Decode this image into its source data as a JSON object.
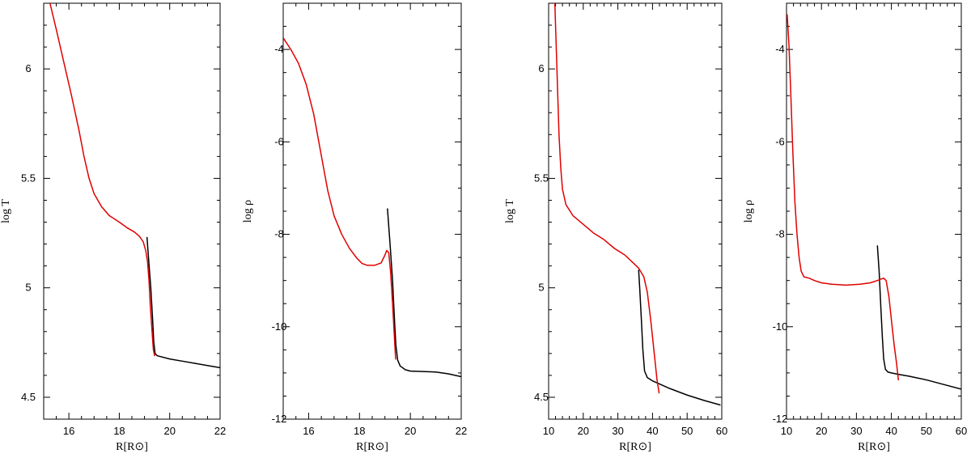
{
  "colors": {
    "model_a": "#000000",
    "model_b": "#e00000",
    "axes": "#000000"
  },
  "chart_data": [
    {
      "type": "line",
      "xlabel": "R[R⊙]",
      "ylabel": "log T",
      "xlim": [
        15,
        22
      ],
      "ylim": [
        4.4,
        6.3
      ],
      "xticks": [
        16,
        18,
        20,
        22
      ],
      "yticks": [
        4.5,
        5,
        5.5,
        6
      ],
      "ytick_labels": [
        "4.5",
        "5",
        "5.5",
        "6"
      ],
      "x_minor": 0.5,
      "y_minor": 0.1,
      "series": [
        {
          "color": "#000000",
          "points": [
            [
              19.1,
              5.23
            ],
            [
              19.17,
              5.12
            ],
            [
              19.25,
              5.0
            ],
            [
              19.32,
              4.86
            ],
            [
              19.37,
              4.75
            ],
            [
              19.42,
              4.7
            ],
            [
              19.5,
              4.69
            ],
            [
              20.0,
              4.675
            ],
            [
              20.5,
              4.665
            ],
            [
              21.0,
              4.655
            ],
            [
              21.5,
              4.645
            ],
            [
              22.0,
              4.635
            ]
          ]
        },
        {
          "color": "#e00000",
          "points": [
            [
              15.25,
              6.3
            ],
            [
              15.5,
              6.18
            ],
            [
              15.8,
              6.03
            ],
            [
              16.1,
              5.88
            ],
            [
              16.4,
              5.72
            ],
            [
              16.6,
              5.6
            ],
            [
              16.8,
              5.5
            ],
            [
              17.0,
              5.43
            ],
            [
              17.3,
              5.37
            ],
            [
              17.6,
              5.33
            ],
            [
              18.0,
              5.3
            ],
            [
              18.3,
              5.275
            ],
            [
              18.6,
              5.255
            ],
            [
              18.8,
              5.235
            ],
            [
              18.95,
              5.21
            ],
            [
              19.05,
              5.17
            ],
            [
              19.12,
              5.12
            ],
            [
              19.18,
              5.03
            ],
            [
              19.23,
              4.92
            ],
            [
              19.3,
              4.8
            ],
            [
              19.35,
              4.72
            ],
            [
              19.4,
              4.69
            ]
          ]
        }
      ]
    },
    {
      "type": "line",
      "xlabel": "R[R⊙]",
      "ylabel": "log ρ",
      "xlim": [
        15,
        22
      ],
      "ylim": [
        -12,
        -3
      ],
      "xticks": [
        16,
        18,
        20,
        22
      ],
      "yticks": [
        -12,
        -10,
        -8,
        -6,
        -4
      ],
      "ytick_labels": [
        "-12",
        "-10",
        "-8",
        "-6",
        "-4"
      ],
      "x_minor": 0.5,
      "y_minor": 0.5,
      "series": [
        {
          "color": "#000000",
          "points": [
            [
              19.1,
              -7.45
            ],
            [
              19.2,
              -8.2
            ],
            [
              19.3,
              -9.0
            ],
            [
              19.38,
              -9.9
            ],
            [
              19.43,
              -10.4
            ],
            [
              19.5,
              -10.72
            ],
            [
              19.6,
              -10.85
            ],
            [
              19.8,
              -10.93
            ],
            [
              20.0,
              -10.96
            ],
            [
              20.5,
              -10.97
            ],
            [
              21.0,
              -10.98
            ],
            [
              21.5,
              -11.02
            ],
            [
              22.0,
              -11.08
            ]
          ]
        },
        {
          "color": "#e00000",
          "points": [
            [
              15.0,
              -3.75
            ],
            [
              15.3,
              -4.0
            ],
            [
              15.6,
              -4.3
            ],
            [
              15.9,
              -4.75
            ],
            [
              16.2,
              -5.4
            ],
            [
              16.5,
              -6.3
            ],
            [
              16.75,
              -7.05
            ],
            [
              17.0,
              -7.6
            ],
            [
              17.3,
              -8.0
            ],
            [
              17.6,
              -8.3
            ],
            [
              17.9,
              -8.52
            ],
            [
              18.1,
              -8.63
            ],
            [
              18.3,
              -8.67
            ],
            [
              18.6,
              -8.67
            ],
            [
              18.85,
              -8.62
            ],
            [
              19.0,
              -8.45
            ],
            [
              19.07,
              -8.35
            ],
            [
              19.15,
              -8.4
            ],
            [
              19.22,
              -8.8
            ],
            [
              19.3,
              -9.5
            ],
            [
              19.37,
              -10.2
            ],
            [
              19.42,
              -10.7
            ]
          ]
        }
      ]
    },
    {
      "type": "line",
      "xlabel": "R[R⊙]",
      "ylabel": "log T",
      "xlim": [
        10,
        60
      ],
      "ylim": [
        4.4,
        6.3
      ],
      "xticks": [
        10,
        20,
        30,
        40,
        50,
        60
      ],
      "yticks": [
        4.5,
        5,
        5.5,
        6
      ],
      "ytick_labels": [
        "4.5",
        "5",
        "5.5",
        "6"
      ],
      "x_minor": 2,
      "y_minor": 0.1,
      "series": [
        {
          "color": "#000000",
          "points": [
            [
              36.0,
              5.08
            ],
            [
              36.3,
              5.0
            ],
            [
              36.8,
              4.85
            ],
            [
              37.2,
              4.72
            ],
            [
              37.7,
              4.62
            ],
            [
              38.5,
              4.59
            ],
            [
              40.0,
              4.575
            ],
            [
              45.0,
              4.54
            ],
            [
              50.0,
              4.51
            ],
            [
              55.0,
              4.485
            ],
            [
              59.5,
              4.465
            ]
          ]
        },
        {
          "color": "#e00000",
          "points": [
            [
              11.8,
              6.3
            ],
            [
              12.2,
              6.1
            ],
            [
              12.6,
              5.9
            ],
            [
              13.0,
              5.7
            ],
            [
              13.5,
              5.55
            ],
            [
              14.0,
              5.45
            ],
            [
              15.0,
              5.38
            ],
            [
              17.0,
              5.33
            ],
            [
              20.0,
              5.29
            ],
            [
              23.0,
              5.25
            ],
            [
              26.0,
              5.22
            ],
            [
              29.0,
              5.18
            ],
            [
              32.0,
              5.15
            ],
            [
              34.0,
              5.12
            ],
            [
              36.0,
              5.09
            ],
            [
              37.5,
              5.05
            ],
            [
              38.5,
              4.98
            ],
            [
              39.5,
              4.85
            ],
            [
              40.5,
              4.7
            ],
            [
              41.3,
              4.58
            ],
            [
              41.9,
              4.52
            ]
          ]
        }
      ]
    },
    {
      "type": "line",
      "xlabel": "R[R⊙]",
      "ylabel": "log ρ",
      "xlim": [
        10,
        60
      ],
      "ylim": [
        -12,
        -3
      ],
      "xticks": [
        10,
        20,
        30,
        40,
        50,
        60
      ],
      "yticks": [
        -12,
        -10,
        -8,
        -6,
        -4
      ],
      "ytick_labels": [
        "-12",
        "-10",
        "-8",
        "-6",
        "-4"
      ],
      "x_minor": 2,
      "y_minor": 0.5,
      "series": [
        {
          "color": "#000000",
          "points": [
            [
              36.0,
              -8.25
            ],
            [
              36.5,
              -8.8
            ],
            [
              37.0,
              -9.6
            ],
            [
              37.4,
              -10.2
            ],
            [
              37.8,
              -10.7
            ],
            [
              38.3,
              -10.92
            ],
            [
              39.0,
              -10.98
            ],
            [
              40.0,
              -11.0
            ],
            [
              42.0,
              -11.03
            ],
            [
              45.0,
              -11.07
            ],
            [
              50.0,
              -11.15
            ],
            [
              55.0,
              -11.25
            ],
            [
              60.0,
              -11.35
            ]
          ]
        },
        {
          "color": "#e00000",
          "points": [
            [
              10.2,
              -3.25
            ],
            [
              10.7,
              -3.9
            ],
            [
              11.2,
              -4.9
            ],
            [
              11.8,
              -6.2
            ],
            [
              12.4,
              -7.3
            ],
            [
              13.0,
              -8.0
            ],
            [
              13.6,
              -8.5
            ],
            [
              14.2,
              -8.8
            ],
            [
              15.0,
              -8.92
            ],
            [
              16.5,
              -8.95
            ],
            [
              18.0,
              -9.0
            ],
            [
              20.0,
              -9.05
            ],
            [
              23.0,
              -9.08
            ],
            [
              27.0,
              -9.1
            ],
            [
              31.0,
              -9.08
            ],
            [
              34.0,
              -9.05
            ],
            [
              36.0,
              -9.0
            ],
            [
              37.0,
              -8.97
            ],
            [
              37.8,
              -8.95
            ],
            [
              38.5,
              -9.0
            ],
            [
              39.3,
              -9.35
            ],
            [
              40.0,
              -9.85
            ],
            [
              40.8,
              -10.4
            ],
            [
              41.5,
              -10.8
            ],
            [
              42.0,
              -11.15
            ]
          ]
        }
      ]
    }
  ]
}
